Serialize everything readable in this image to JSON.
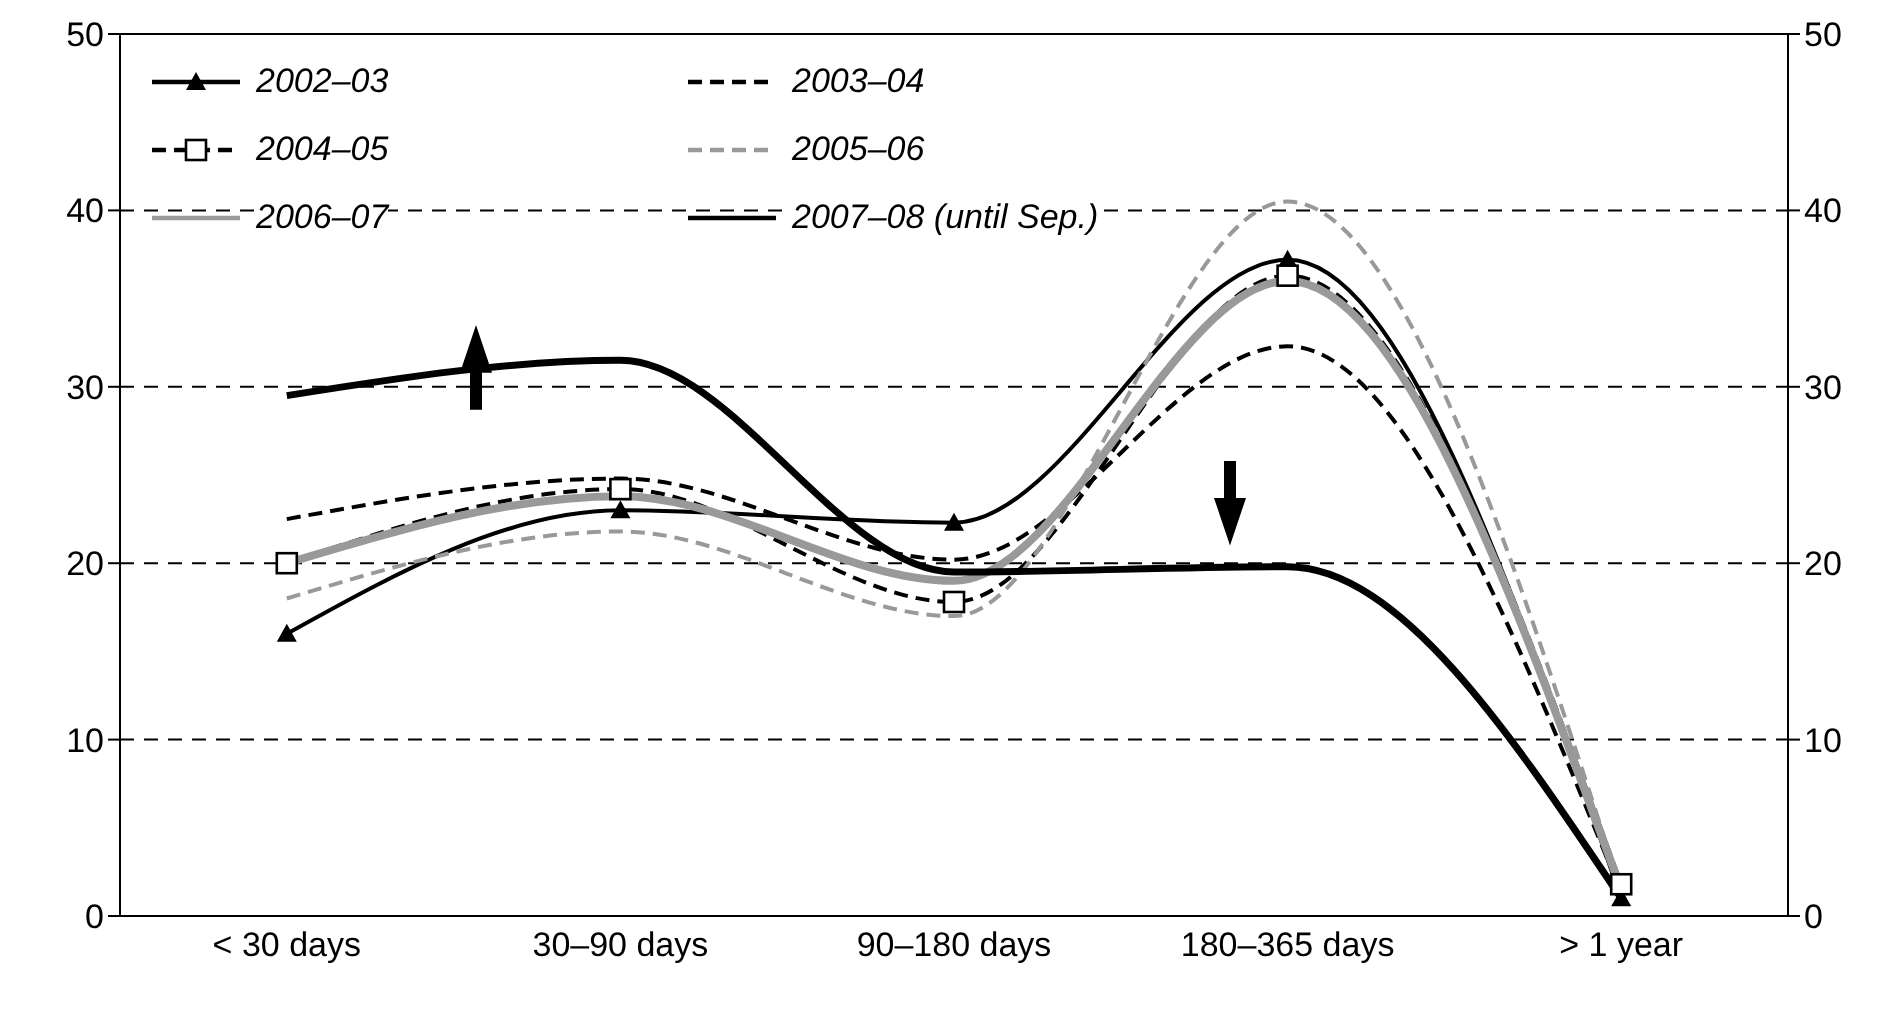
{
  "chart_data": {
    "type": "line",
    "categories": [
      "< 30 days",
      "30–90 days",
      "90–180 days",
      "180–365 days",
      "> 1 year"
    ],
    "series": [
      {
        "name": "2002–03",
        "color": "#000000",
        "marker": "triangle",
        "line_style": "solid",
        "values": [
          16,
          23,
          22.3,
          37.2,
          1
        ]
      },
      {
        "name": "2003–04",
        "color": "#000000",
        "marker": "none",
        "line_style": "dashed",
        "values": [
          22.5,
          24.8,
          20.2,
          32.3,
          1.3
        ]
      },
      {
        "name": "2004–05",
        "color": "#000000",
        "marker": "square",
        "line_style": "dashed",
        "values": [
          20,
          24.2,
          17.8,
          36.3,
          1.8
        ]
      },
      {
        "name": "2005–06",
        "color": "#999999",
        "marker": "none",
        "line_style": "dashed",
        "values": [
          18,
          21.8,
          17,
          40.5,
          1.5
        ]
      },
      {
        "name": "2006–07",
        "color": "#999999",
        "marker": "none",
        "line_style": "solid",
        "values": [
          20,
          23.8,
          19,
          36,
          1.5
        ]
      },
      {
        "name": "2007–08 (until Sep.)",
        "color": "#000000",
        "marker": "none",
        "line_style": "solid",
        "values": [
          29.5,
          31.5,
          19.5,
          19.8,
          1
        ]
      }
    ],
    "ylim": [
      0,
      50
    ],
    "yticks": [
      0,
      10,
      20,
      30,
      40,
      50
    ],
    "y2lim": [
      0,
      50
    ],
    "y2ticks": [
      0,
      10,
      20,
      30,
      40,
      50
    ],
    "grid": "y",
    "legend": "top left"
  }
}
